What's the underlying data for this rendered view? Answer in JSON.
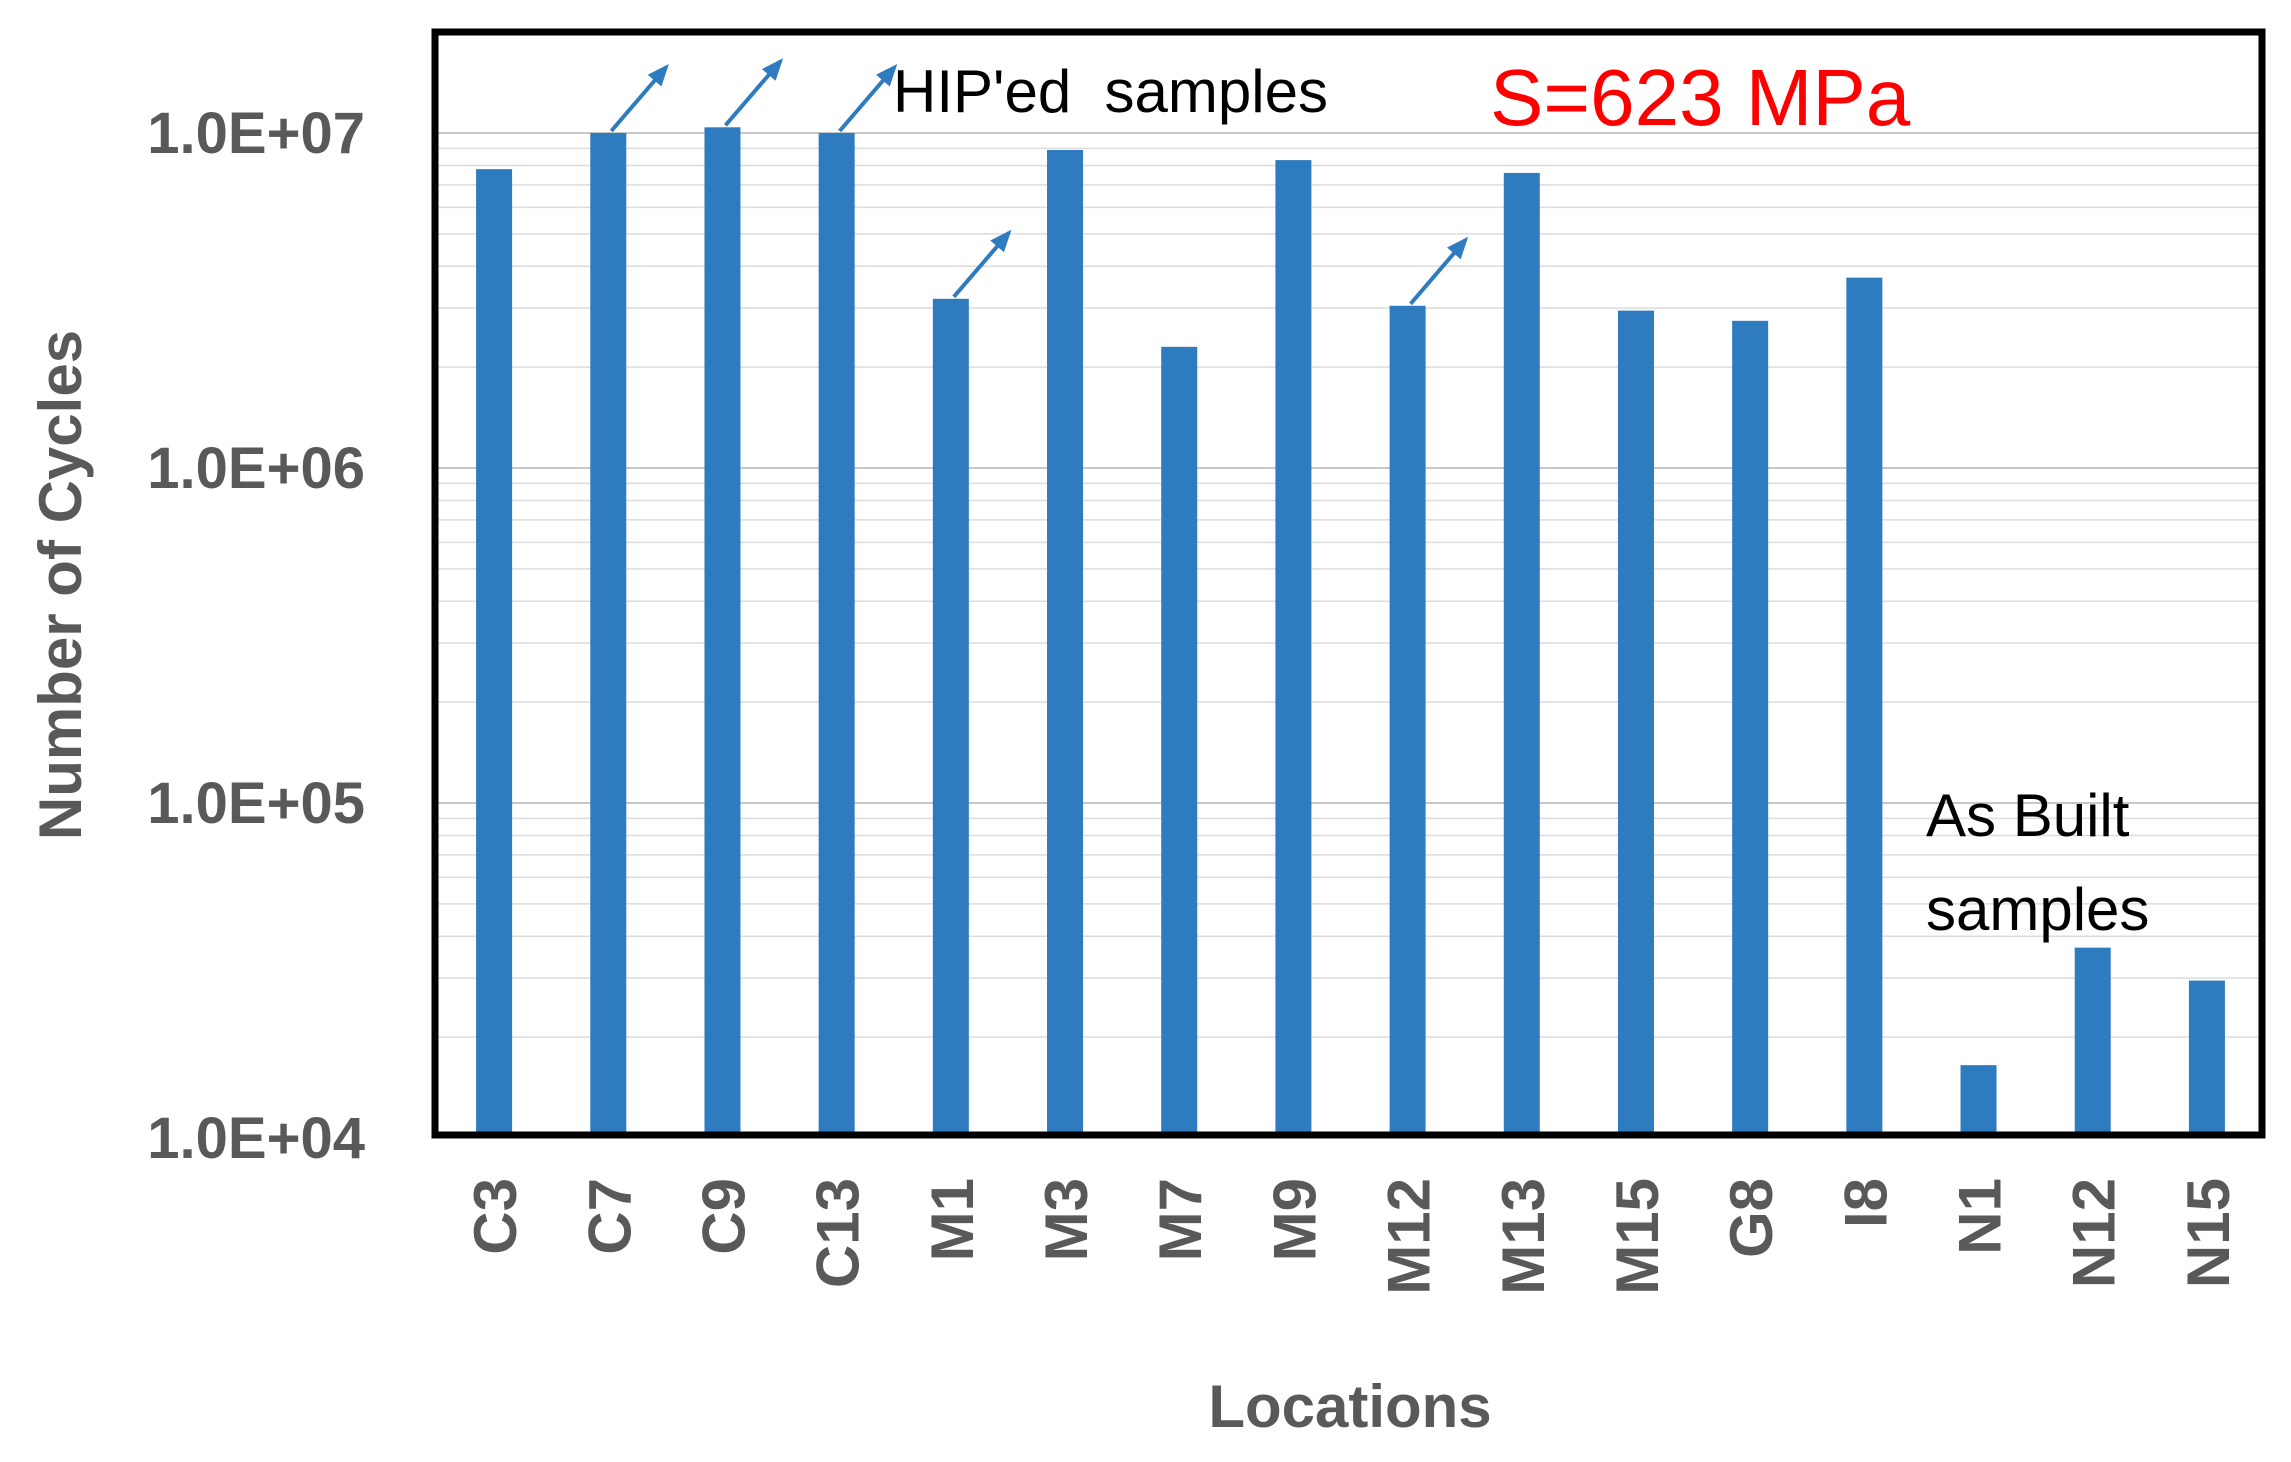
{
  "chart_data": {
    "type": "bar",
    "title": "",
    "xlabel": "Locations",
    "ylabel": "Number of Cycles",
    "yscale": "log",
    "ylim": [
      10000,
      20000000
    ],
    "yticks": [
      10000,
      100000,
      1000000,
      10000000
    ],
    "ytick_labels": [
      "1.0E+04",
      "1.0E+05",
      "1.0E+06",
      "1.0E+07"
    ],
    "grid": true,
    "legend": "none",
    "categories": [
      "C3",
      "C7",
      "C9",
      "C13",
      "M1",
      "M3",
      "M7",
      "M9",
      "M12",
      "M13",
      "M15",
      "G8",
      "I8",
      "N1",
      "N12",
      "N15"
    ],
    "values": [
      7800000,
      10000000,
      10400000,
      10000000,
      3200000,
      8900000,
      2300000,
      8300000,
      3050000,
      7600000,
      2950000,
      2750000,
      3700000,
      16500,
      37000,
      29500
    ],
    "runouts": [
      "C7",
      "C9",
      "C13",
      "M1",
      "M12"
    ],
    "bar_color": "#2e7bbf",
    "annotations": {
      "hiped": "HIP'ed  samples",
      "stress": "S=623 MPa",
      "as_built_line1": "As Built",
      "as_built_line2": "samples"
    },
    "stress_color": "#ff0000"
  }
}
